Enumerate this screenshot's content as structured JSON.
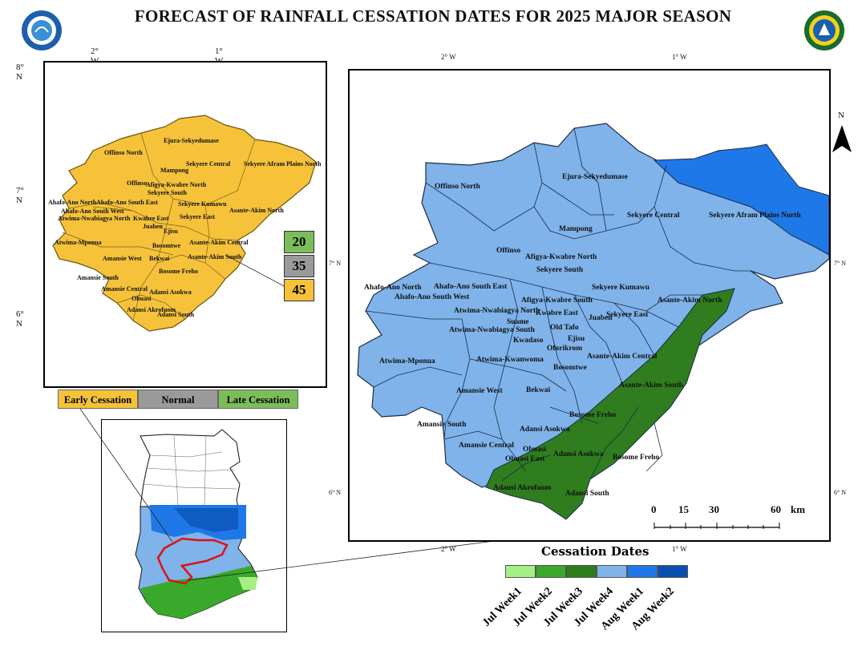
{
  "title": "FORECAST OF RAINFALL CESSATION DATES FOR 2025 MAJOR SEASON",
  "logos": {
    "left": "meteo-agency-logo-icon",
    "right": "partner-seal-icon"
  },
  "colors": {
    "yellow": "#f5c23a",
    "green": "#7cbd5a",
    "gray": "#9a9a9a",
    "light_blue": "#7fb3ea",
    "blue": "#1f78e8",
    "dark_green": "#2f7d1e"
  },
  "left_map": {
    "lon_ticks": [
      "2° W",
      "1° W"
    ],
    "lat_ticks": [
      "8° N",
      "7° N",
      "6° N"
    ],
    "legend_values": [
      "20",
      "35",
      "45"
    ],
    "categories": [
      "Early Cessation",
      "Normal",
      "Late Cessation"
    ],
    "district_labels": [
      "Ejura-Sekyedumase",
      "Offinso North",
      "Sekyere Central",
      "Sekyere Afram Plains North",
      "Mampong",
      "Offinso",
      "Afigya-Kwabre North",
      "Sekyere South",
      "Ahafo-Ano North",
      "Ahafo-Ano South East",
      "Ahafo-Ano South West",
      "Sekyere Kumawu",
      "Asante-Akim North",
      "Atwima-Nwabiagya North",
      "Kwabre East",
      "Sekyere East",
      "Juaben",
      "Ejisu",
      "Atwima-Mponua",
      "Asante-Akim Central",
      "Bosomtwe",
      "Amansie West",
      "Bekwai",
      "Asante-Akim South",
      "Amansie South",
      "Bosome Freho",
      "Amansie Central",
      "Adansi Asokwa",
      "Obuasi",
      "Adansi Akrofuom",
      "Adansi South"
    ]
  },
  "main_map": {
    "lon_ticks": [
      "2° W",
      "1° W"
    ],
    "lat_ticks": [
      "7° N",
      "6° N"
    ],
    "north_label": "N",
    "scale": {
      "values": [
        "0",
        "15",
        "30",
        "60"
      ],
      "unit": "km"
    },
    "district_labels": [
      "Ejura-Sekyedumase",
      "Offinso North",
      "Sekyere Central",
      "Sekyere Afram Plains North",
      "Mampong",
      "Offinso",
      "Afigya-Kwabre North",
      "Sekyere South",
      "Ahafo-Ano North",
      "Ahafo-Ano South East",
      "Ahafo-Ano South West",
      "Sekyere Kumawu",
      "Asante-Akim North",
      "Atwima-Nwabiagya North",
      "Afigya-Kwabre South",
      "Kwabre East",
      "Suame",
      "Juaben",
      "Sekyere East",
      "Old Tafo",
      "Atwima-Nwabiagya South",
      "Ejisu",
      "Kwadaso",
      "Oforikrom",
      "Asante-Akim Central",
      "Atwima-Mponua",
      "Atwima-Kwanwoma",
      "Bosomtwe",
      "Amansie West",
      "Bekwai",
      "Asante-Akim South",
      "Bosome Freho",
      "Amansie South",
      "Adansi Asokwa",
      "Amansie Central",
      "Obuasi",
      "Obuasi East",
      "Adansi Asokwa",
      "Bosome Freho",
      "Adansi Akrofuom",
      "Adansi South"
    ]
  },
  "cessation_legend": {
    "title": "Cessation Dates",
    "items": [
      {
        "label": "Jul Week1",
        "color": "#a6ef85"
      },
      {
        "label": "Jul Week2",
        "color": "#3aa82a"
      },
      {
        "label": "Jul Week3",
        "color": "#2a7d18"
      },
      {
        "label": "Jul Week4",
        "color": "#7fb3ea"
      },
      {
        "label": "Aug Week1",
        "color": "#1f78e8"
      },
      {
        "label": "Aug Week2",
        "color": "#0a4fb0"
      }
    ]
  }
}
